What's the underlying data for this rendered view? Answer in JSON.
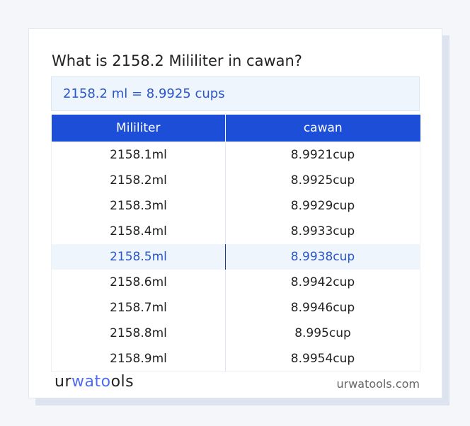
{
  "title": "What is 2158.2 Mililiter in cawan?",
  "result": "2158.2 ml = 8.9925 cups",
  "table": {
    "headers": [
      "Mililiter",
      "cawan"
    ],
    "rows": [
      [
        "2158.1ml",
        "8.9921cup"
      ],
      [
        "2158.2ml",
        "8.9925cup"
      ],
      [
        "2158.3ml",
        "8.9929cup"
      ],
      [
        "2158.4ml",
        "8.9933cup"
      ],
      [
        "2158.5ml",
        "8.9938cup"
      ],
      [
        "2158.6ml",
        "8.9942cup"
      ],
      [
        "2158.7ml",
        "8.9946cup"
      ],
      [
        "2158.8ml",
        "8.995cup"
      ],
      [
        "2158.9ml",
        "8.9954cup"
      ]
    ],
    "highlighted_row": 4
  },
  "footer": {
    "logo_a": "ur",
    "logo_b": "wato",
    "logo_c": "ols",
    "site": "urwatools.com"
  },
  "colors": {
    "header": "#1d4ed8",
    "accent_text": "#2a56c6",
    "highlight_bg": "#eef5fd"
  }
}
